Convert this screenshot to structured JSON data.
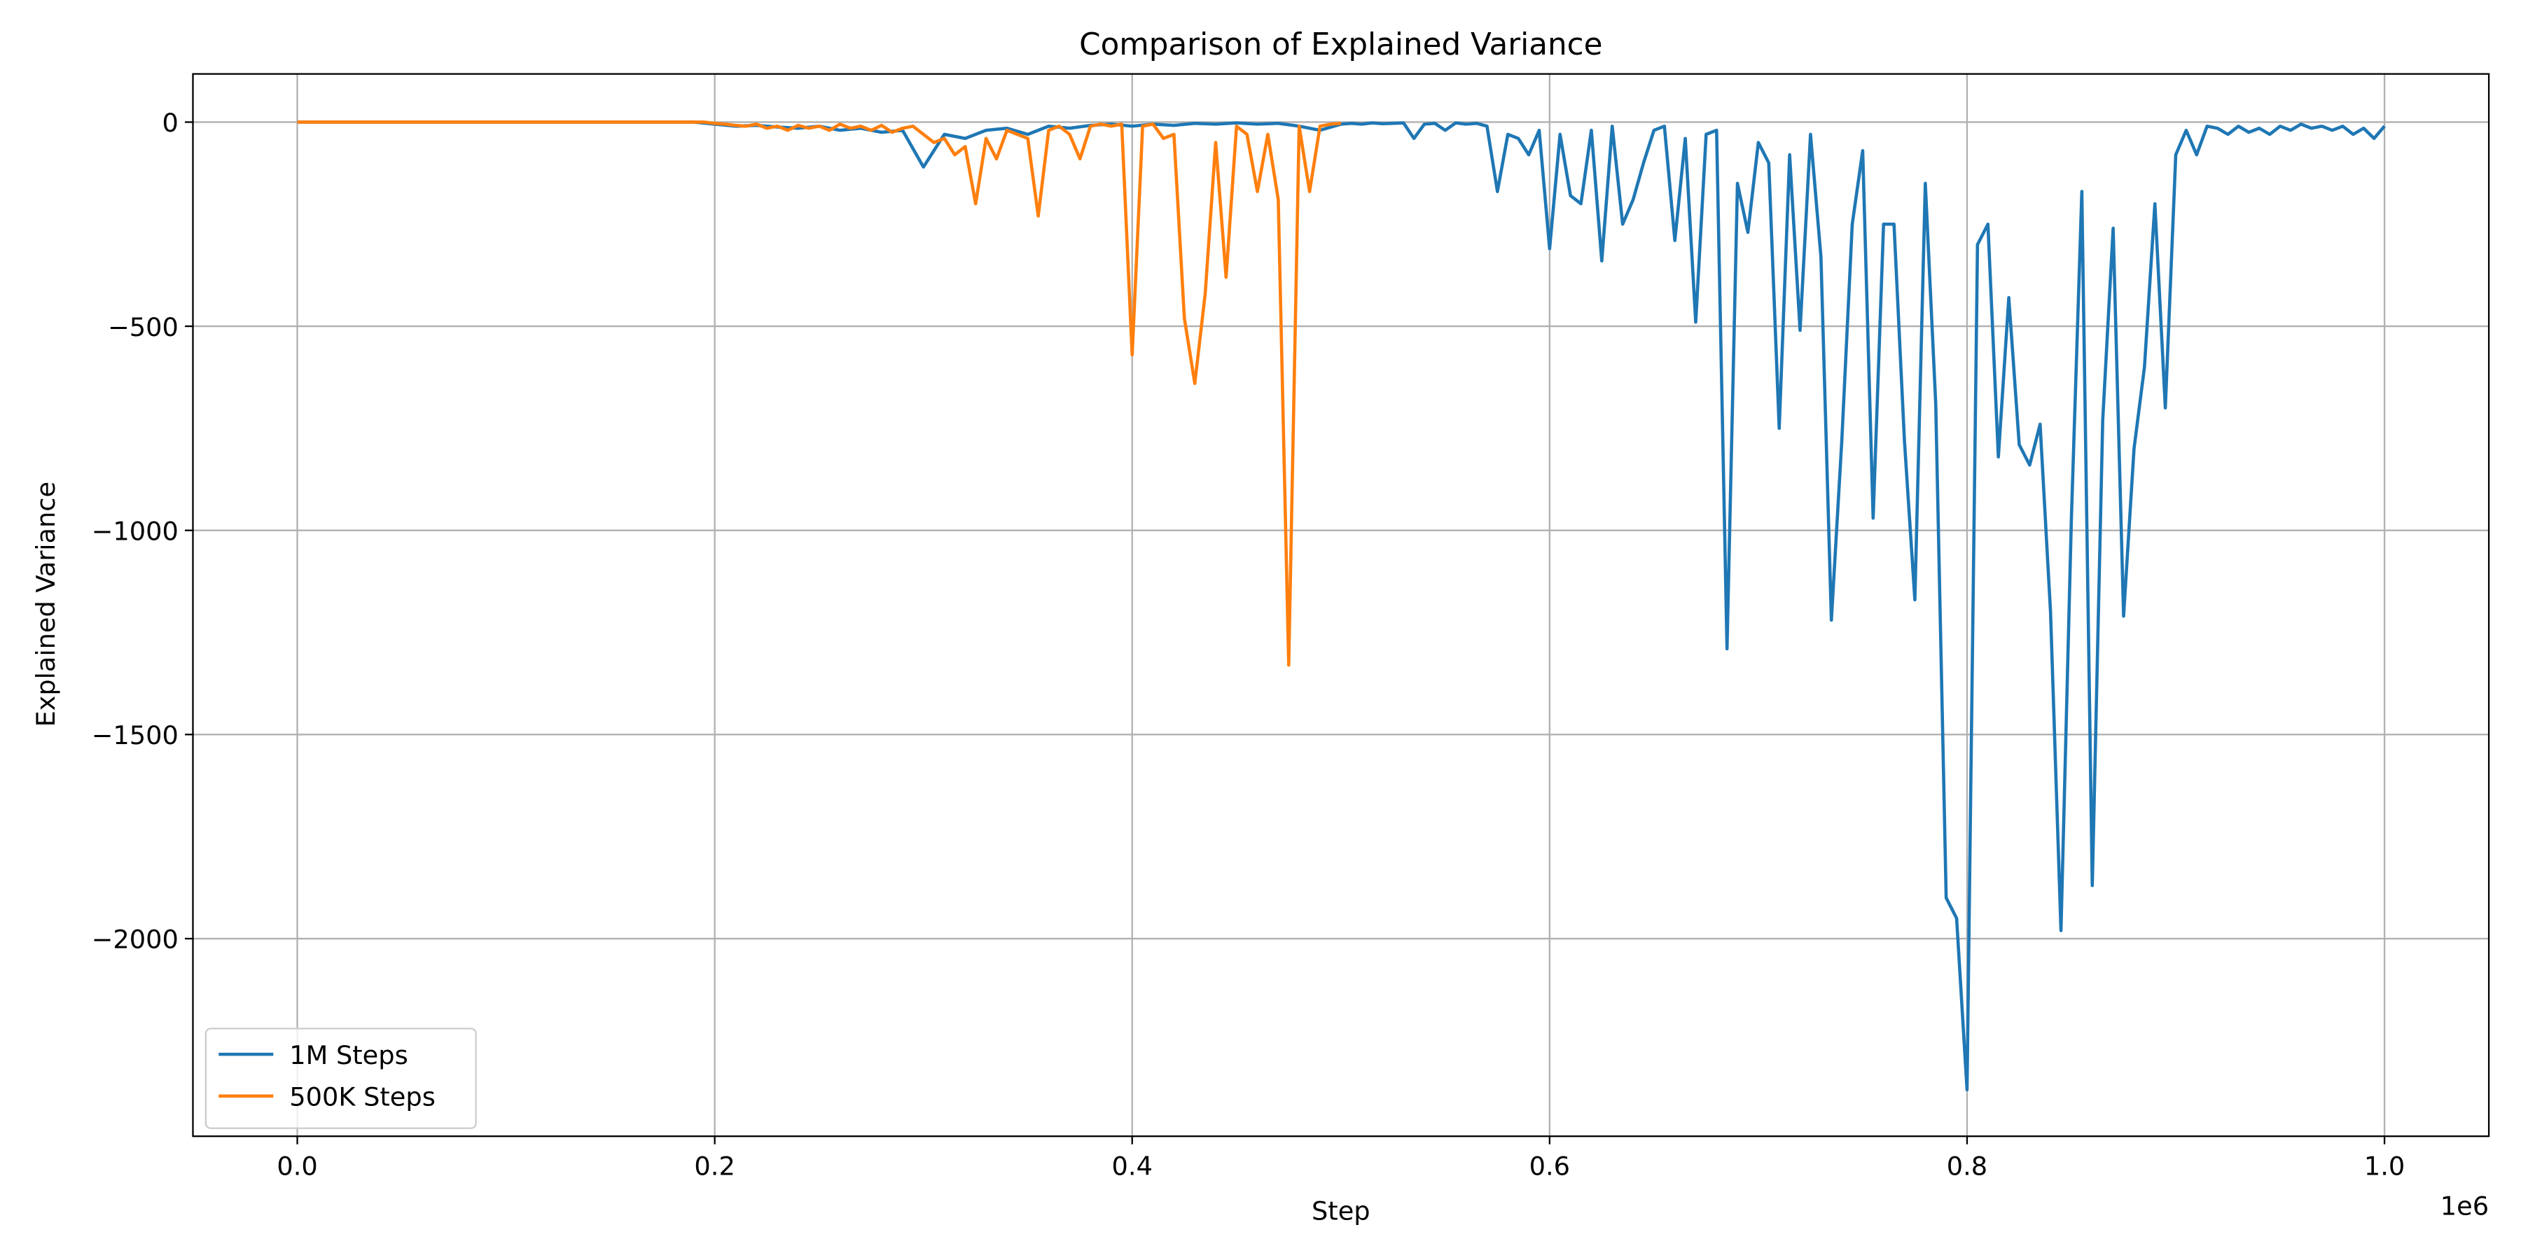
{
  "chart_data": {
    "type": "line",
    "title": "Comparison of Explained Variance",
    "x_label": "Step",
    "y_label": "Explained Variance",
    "x_offset_label": "1e6",
    "xlim": [
      -50000,
      1050000
    ],
    "ylim": [
      -2484,
      118
    ],
    "xticks": [
      {
        "value": 0,
        "label": "0.0"
      },
      {
        "value": 200000,
        "label": "0.2"
      },
      {
        "value": 400000,
        "label": "0.4"
      },
      {
        "value": 600000,
        "label": "0.6"
      },
      {
        "value": 800000,
        "label": "0.8"
      },
      {
        "value": 1000000,
        "label": "1.0"
      }
    ],
    "yticks": [
      0,
      {
        "value": -500,
        "label": "−500"
      },
      {
        "value": -1000,
        "label": "−1000"
      },
      {
        "value": -1500,
        "label": "−1500"
      },
      {
        "value": -2000,
        "label": "−2000"
      }
    ],
    "grid": true,
    "legend": "lower left",
    "series": [
      {
        "name": "1M Steps",
        "color": "#1f77b4",
        "x": [
          0,
          10000,
          20000,
          30000,
          40000,
          50000,
          60000,
          70000,
          80000,
          90000,
          100000,
          110000,
          120000,
          130000,
          140000,
          150000,
          160000,
          170000,
          180000,
          190000,
          200000,
          210000,
          220000,
          230000,
          240000,
          250000,
          260000,
          270000,
          280000,
          290000,
          300000,
          310000,
          320000,
          330000,
          340000,
          350000,
          360000,
          370000,
          380000,
          390000,
          400000,
          410000,
          420000,
          430000,
          440000,
          450000,
          460000,
          470000,
          480000,
          490000,
          500000,
          505000,
          510000,
          515000,
          520000,
          525000,
          530000,
          535000,
          540000,
          545000,
          550000,
          555000,
          560000,
          565000,
          570000,
          575000,
          580000,
          585000,
          590000,
          595000,
          600000,
          605000,
          610000,
          615000,
          620000,
          625000,
          630000,
          635000,
          640000,
          645000,
          650000,
          655000,
          660000,
          665000,
          670000,
          675000,
          680000,
          685000,
          690000,
          695000,
          700000,
          705000,
          710000,
          715000,
          720000,
          725000,
          730000,
          735000,
          740000,
          745000,
          750000,
          755000,
          760000,
          765000,
          770000,
          775000,
          780000,
          785000,
          790000,
          795000,
          800000,
          805000,
          810000,
          815000,
          820000,
          825000,
          830000,
          835000,
          840000,
          845000,
          850000,
          855000,
          860000,
          865000,
          870000,
          875000,
          880000,
          885000,
          890000,
          895000,
          900000,
          905000,
          910000,
          915000,
          920000,
          925000,
          930000,
          935000,
          940000,
          945000,
          950000,
          955000,
          960000,
          965000,
          970000,
          975000,
          980000,
          985000,
          990000,
          995000,
          1000000
        ],
        "values": [
          0,
          0,
          0,
          0,
          0,
          0,
          0,
          0,
          0,
          0,
          0,
          0,
          0,
          0,
          0,
          0,
          0,
          0,
          0,
          0,
          -5,
          -10,
          -8,
          -12,
          -15,
          -10,
          -20,
          -15,
          -25,
          -20,
          -110,
          -30,
          -40,
          -20,
          -15,
          -30,
          -10,
          -15,
          -8,
          -5,
          -10,
          -5,
          -8,
          -3,
          -5,
          -2,
          -5,
          -3,
          -10,
          -20,
          -5,
          -3,
          -5,
          -2,
          -4,
          -3,
          -2,
          -40,
          -5,
          -3,
          -20,
          -2,
          -5,
          -3,
          -10,
          -170,
          -30,
          -40,
          -80,
          -20,
          -310,
          -30,
          -180,
          -200,
          -20,
          -340,
          -10,
          -250,
          -190,
          -100,
          -20,
          -10,
          -290,
          -40,
          -490,
          -30,
          -20,
          -1290,
          -150,
          -270,
          -50,
          -100,
          -750,
          -80,
          -510,
          -30,
          -330,
          -1220,
          -780,
          -250,
          -70,
          -970,
          -250,
          -250,
          -780,
          -1170,
          -150,
          -690,
          -1900,
          -1950,
          -2370,
          -300,
          -250,
          -820,
          -430,
          -790,
          -840,
          -740,
          -1200,
          -1980,
          -970,
          -170,
          -1870,
          -730,
          -260,
          -1210,
          -800,
          -600,
          -200,
          -700,
          -80,
          -20,
          -80,
          -10,
          -15,
          -30,
          -10,
          -25,
          -15,
          -30,
          -10,
          -20,
          -5,
          -15,
          -10,
          -20,
          -10,
          -30,
          -15,
          -40,
          -10
        ]
      },
      {
        "name": "500K Steps",
        "color": "#ff7f0e",
        "x": [
          0,
          5000,
          10000,
          15000,
          20000,
          25000,
          30000,
          35000,
          40000,
          45000,
          50000,
          55000,
          60000,
          65000,
          70000,
          75000,
          80000,
          85000,
          90000,
          95000,
          100000,
          105000,
          110000,
          115000,
          120000,
          125000,
          130000,
          135000,
          140000,
          145000,
          150000,
          155000,
          160000,
          165000,
          170000,
          175000,
          180000,
          185000,
          190000,
          195000,
          200000,
          205000,
          210000,
          215000,
          220000,
          225000,
          230000,
          235000,
          240000,
          245000,
          250000,
          255000,
          260000,
          265000,
          270000,
          275000,
          280000,
          285000,
          290000,
          295000,
          300000,
          305000,
          310000,
          315000,
          320000,
          325000,
          330000,
          335000,
          340000,
          345000,
          350000,
          355000,
          360000,
          365000,
          370000,
          375000,
          380000,
          385000,
          390000,
          395000,
          400000,
          405000,
          410000,
          415000,
          420000,
          425000,
          430000,
          435000,
          440000,
          445000,
          450000,
          455000,
          460000,
          465000,
          470000,
          475000,
          480000,
          485000,
          490000,
          495000,
          500000
        ],
        "values": [
          0,
          0,
          0,
          0,
          0,
          0,
          0,
          0,
          0,
          0,
          0,
          0,
          0,
          0,
          0,
          0,
          0,
          0,
          0,
          0,
          0,
          0,
          0,
          0,
          0,
          0,
          0,
          0,
          0,
          0,
          0,
          0,
          0,
          0,
          0,
          0,
          0,
          0,
          0,
          0,
          -3,
          -5,
          -8,
          -10,
          -5,
          -15,
          -10,
          -20,
          -8,
          -15,
          -10,
          -20,
          -5,
          -15,
          -10,
          -20,
          -8,
          -25,
          -15,
          -10,
          -30,
          -50,
          -40,
          -80,
          -60,
          -200,
          -40,
          -90,
          -20,
          -30,
          -40,
          -230,
          -20,
          -10,
          -30,
          -90,
          -10,
          -5,
          -10,
          -5,
          -570,
          -10,
          -5,
          -40,
          -30,
          -480,
          -640,
          -420,
          -50,
          -380,
          -10,
          -30,
          -170,
          -30,
          -190,
          -1330,
          -10,
          -170,
          -10,
          -5,
          -3
        ]
      }
    ]
  }
}
